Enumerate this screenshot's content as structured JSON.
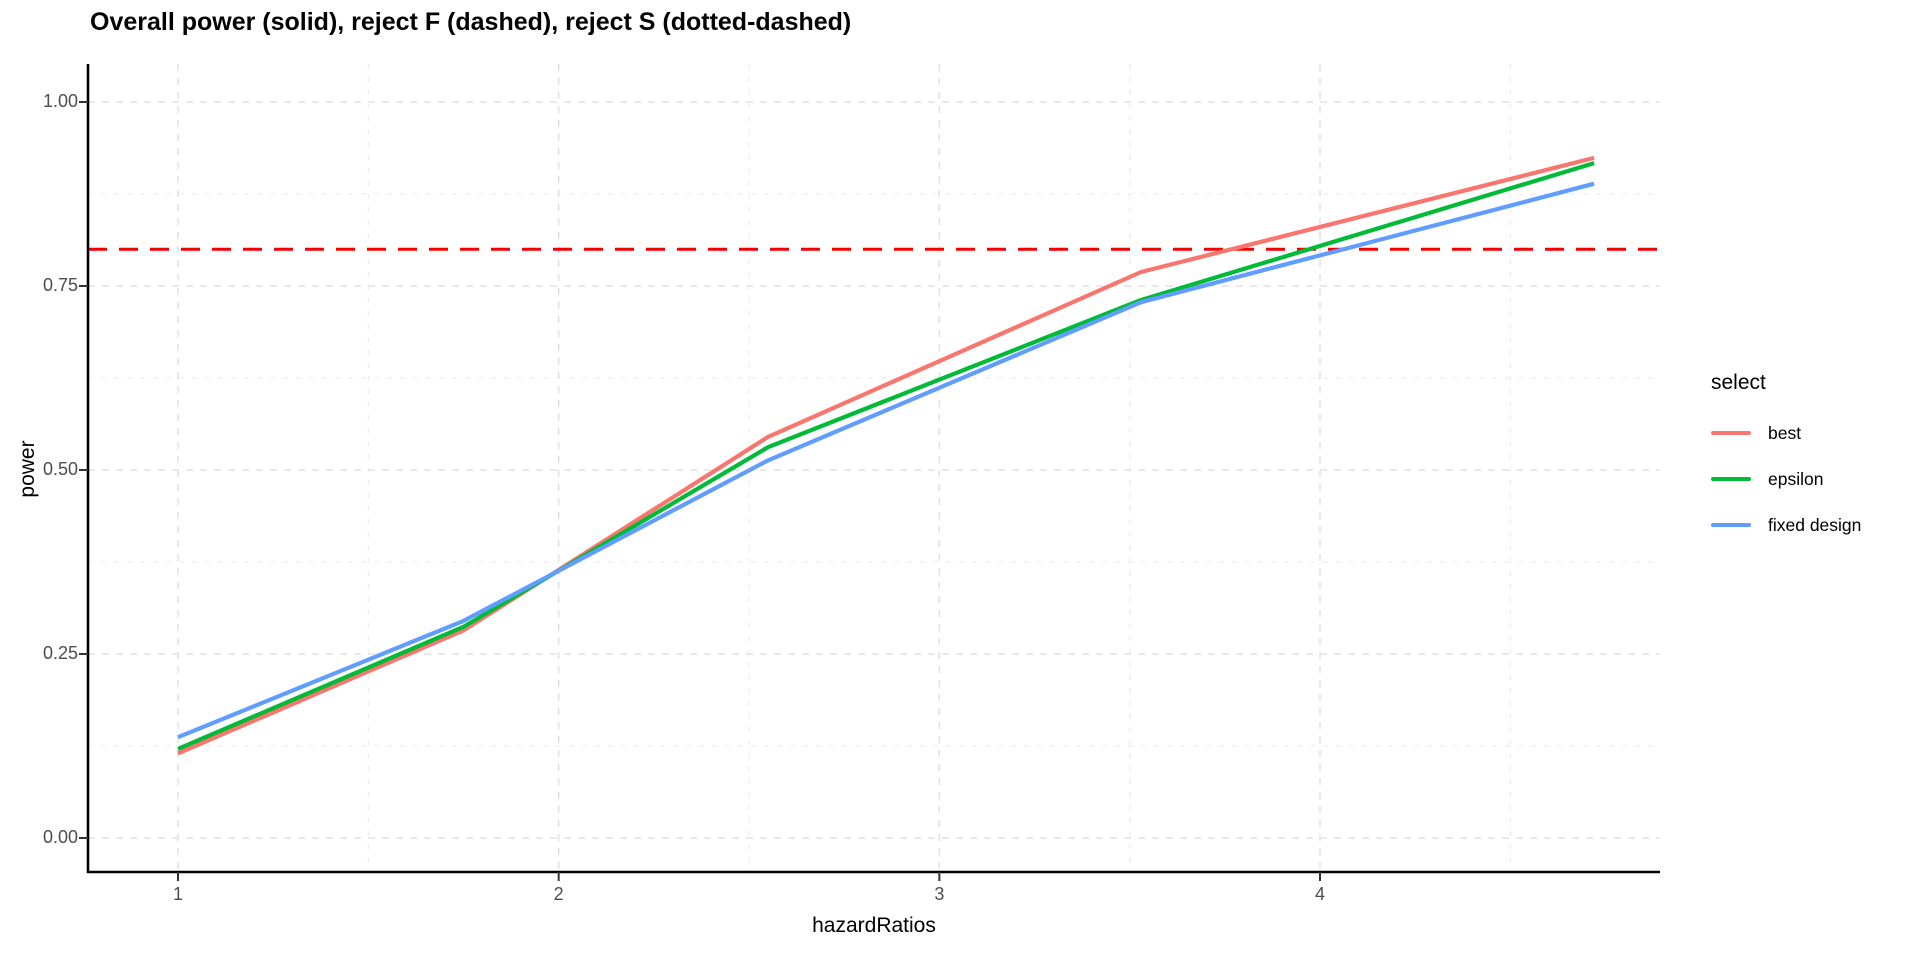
{
  "chart_data": {
    "type": "line",
    "title": "Overall power (solid), reject F (dashed), reject S (dotted-dashed)",
    "xlabel": "hazardRatios",
    "ylabel": "power",
    "legend_title": "select",
    "legend_position": "right",
    "x": [
      1,
      1.75,
      2.55,
      3.53,
      4.72
    ],
    "series": [
      {
        "name": "best",
        "color": "#F8766D",
        "values": [
          0.115,
          0.282,
          0.545,
          0.769,
          0.924
        ]
      },
      {
        "name": "epsilon",
        "color": "#00BA38",
        "values": [
          0.121,
          0.287,
          0.531,
          0.731,
          0.917
        ]
      },
      {
        "name": "fixed design",
        "color": "#619CFF",
        "values": [
          0.137,
          0.295,
          0.513,
          0.728,
          0.889
        ]
      }
    ],
    "reference_line": {
      "y": 0.8,
      "color": "#F50000",
      "style": "dashed"
    },
    "x_ticks": {
      "labels": [
        "1",
        "2",
        "3",
        "4"
      ],
      "values": [
        1,
        2,
        3,
        4
      ],
      "minor": [
        1.5,
        2.5,
        3.5,
        4.5
      ]
    },
    "y_ticks": {
      "labels": [
        "0.00",
        "0.25",
        "0.50",
        "0.75",
        "1.00"
      ],
      "values": [
        0,
        0.25,
        0.5,
        0.75,
        1
      ],
      "minor": [
        0.125,
        0.375,
        0.625,
        0.875
      ]
    },
    "xlim": [
      0.76,
      4.89
    ],
    "ylim": [
      -0.046,
      1.046
    ],
    "grid": {
      "style": "dashed",
      "major_color": "#E2E2E2",
      "minor_color": "#EDEDED"
    },
    "axis_color": "#000000",
    "tick_label_color": "#4d4d4d"
  }
}
